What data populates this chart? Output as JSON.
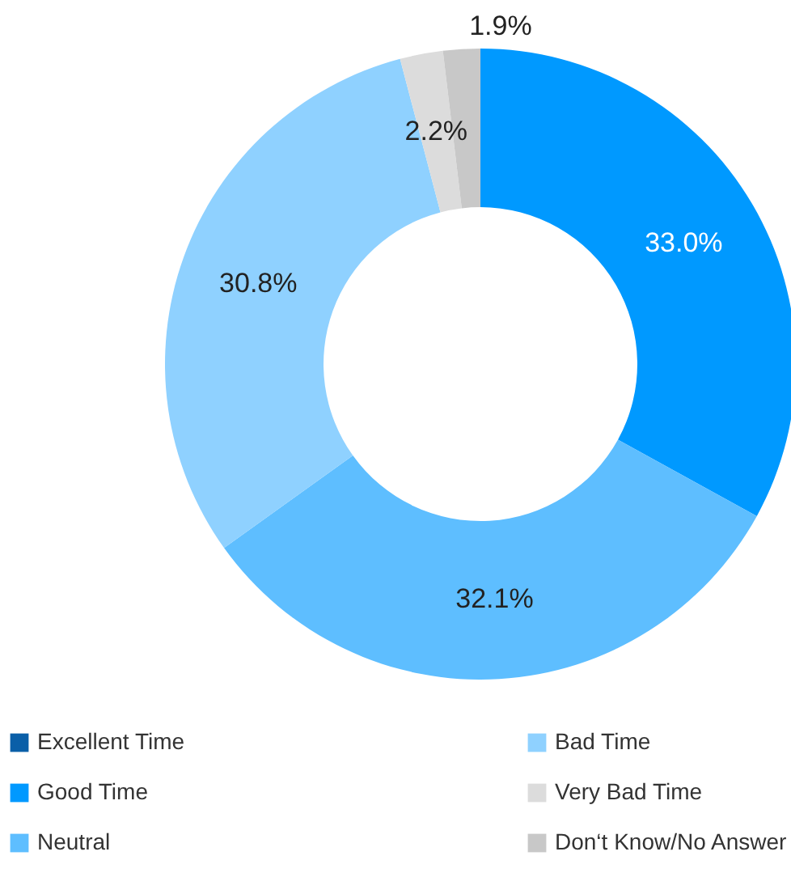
{
  "chart_data": {
    "type": "donut",
    "categories": [
      "Excellent Time",
      "Good Time",
      "Neutral",
      "Bad Time",
      "Very Bad Time",
      "Don‘t Know/No Answer"
    ],
    "values": [
      0,
      33.0,
      32.1,
      30.8,
      2.2,
      1.9
    ],
    "value_labels": [
      null,
      "33.0%",
      "32.1%",
      "30.8%",
      "2.2%",
      "1.9%"
    ],
    "colors": [
      "#0a5fa8",
      "#0099ff",
      "#5ebeff",
      "#8fd1ff",
      "#dcdcdc",
      "#c8c8c8"
    ],
    "legend": "bottom"
  }
}
